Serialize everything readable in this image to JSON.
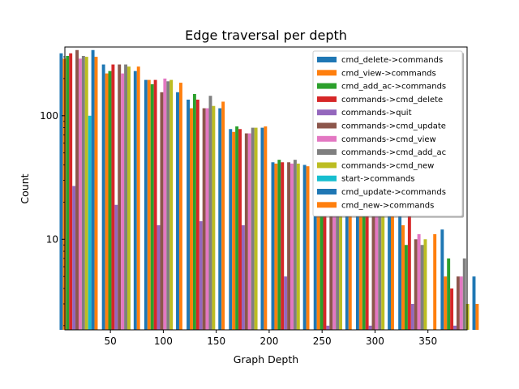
{
  "chart_data": {
    "type": "bar",
    "title": "Edge traversal per depth",
    "xlabel": "Graph Depth",
    "ylabel": "Count",
    "yscale": "log",
    "xlim": [
      7,
      387
    ],
    "ylim": [
      1.85,
      360
    ],
    "legend_position": "top-right",
    "x_ticks": [
      50,
      100,
      150,
      200,
      250,
      300,
      350
    ],
    "y_ticks": [
      10,
      100
    ],
    "categories": [
      20,
      60,
      100,
      140,
      180,
      220,
      260,
      300,
      340,
      380
    ],
    "series": [
      {
        "name": "cmd_delete->commands",
        "color": "#1f77b4",
        "values": [
          320,
          260,
          195,
          135,
          78,
          42,
          35,
          30,
          23,
          12
        ]
      },
      {
        "name": "cmd_view->commands",
        "color": "#ff7f0e",
        "values": [
          290,
          220,
          195,
          115,
          74,
          41,
          31,
          28,
          13,
          5
        ]
      },
      {
        "name": "cmd_add_ac->commands",
        "color": "#2ca02c",
        "values": [
          305,
          230,
          180,
          150,
          82,
          44,
          26,
          22,
          9,
          7
        ]
      },
      {
        "name": "commands->cmd_delete",
        "color": "#d62728",
        "values": [
          320,
          260,
          195,
          135,
          78,
          42,
          35,
          30,
          23,
          4
        ]
      },
      {
        "name": "commands->quit",
        "color": "#9467bd",
        "values": [
          27,
          19,
          13,
          14,
          13,
          5,
          2,
          2,
          3,
          2
        ]
      },
      {
        "name": "commands->cmd_update",
        "color": "#8c564b",
        "values": [
          340,
          260,
          155,
          115,
          72,
          42,
          28,
          24,
          10,
          5
        ]
      },
      {
        "name": "commands->cmd_view",
        "color": "#e377c2",
        "values": [
          290,
          220,
          200,
          115,
          72,
          41,
          29,
          23,
          11,
          5
        ]
      },
      {
        "name": "commands->cmd_add_ac",
        "color": "#7f7f7f",
        "values": [
          305,
          260,
          190,
          145,
          80,
          44,
          27,
          17,
          9,
          7
        ]
      },
      {
        "name": "commands->cmd_new",
        "color": "#bcbd22",
        "values": [
          300,
          250,
          195,
          120,
          80,
          41,
          28,
          16,
          10,
          3
        ]
      },
      {
        "name": "start->commands",
        "color": "#17becf",
        "values": [
          100,
          0,
          0,
          0,
          0,
          0,
          0,
          0,
          0,
          0
        ]
      },
      {
        "name": "cmd_update->commands",
        "color": "#1f77b4",
        "values": [
          340,
          230,
          155,
          115,
          80,
          40,
          27,
          20,
          0,
          5
        ]
      },
      {
        "name": "cmd_new->commands",
        "color": "#ff7f0e",
        "values": [
          300,
          250,
          185,
          130,
          82,
          39,
          24,
          17,
          11,
          3
        ]
      }
    ]
  }
}
